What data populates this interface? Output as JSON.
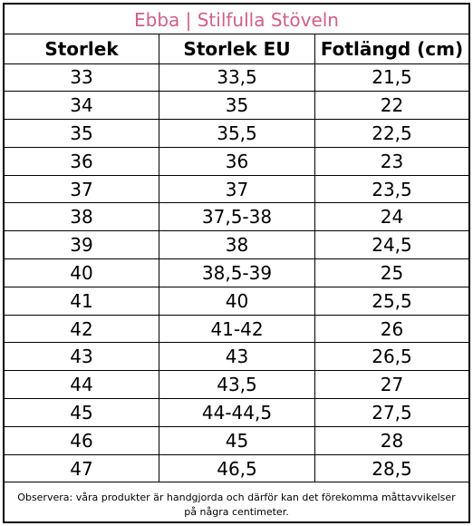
{
  "title": "Ebba | Stilfulla Stöveln",
  "title_color": "#d05f8a",
  "table": {
    "headers": [
      "Storlek",
      "Storlek EU",
      "Fotlängd (cm)"
    ],
    "rows": [
      [
        "33",
        "33,5",
        "21,5"
      ],
      [
        "34",
        "35",
        "22"
      ],
      [
        "35",
        "35,5",
        "22,5"
      ],
      [
        "36",
        "36",
        "23"
      ],
      [
        "37",
        "37",
        "23,5"
      ],
      [
        "38",
        "37,5-38",
        "24"
      ],
      [
        "39",
        "38",
        "24,5"
      ],
      [
        "40",
        "38,5-39",
        "25"
      ],
      [
        "41",
        "40",
        "25,5"
      ],
      [
        "42",
        "41-42",
        "26"
      ],
      [
        "43",
        "43",
        "26,5"
      ],
      [
        "44",
        "43,5",
        "27"
      ],
      [
        "45",
        "44-44,5",
        "27,5"
      ],
      [
        "46",
        "45",
        "28"
      ],
      [
        "47",
        "46,5",
        "28,5"
      ]
    ]
  },
  "note": "Observera: våra produkter är handgjorda och därför kan det förekomma måttavvikelser på några centimeter."
}
